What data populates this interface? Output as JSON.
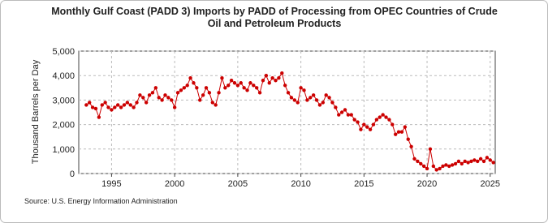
{
  "chart_data": {
    "type": "line",
    "title": "Monthly Gulf Coast (PADD 3) Imports by PADD of Processing from OPEC Countries of Crude Oil and Petroleum Products",
    "y_label": "Thousand Barrels per Day",
    "source": "Source: U.S. Energy Information Administration",
    "xlim": [
      1992.4,
      2025.4
    ],
    "xticks": [
      1995,
      2000,
      2005,
      2010,
      2015,
      2020,
      2025
    ],
    "ylim": [
      0,
      5000
    ],
    "yticks": [
      0,
      {
        "value": 1000,
        "label": "1,000"
      },
      {
        "value": 2000,
        "label": "2,000"
      },
      {
        "value": 3000,
        "label": "3,000"
      },
      {
        "value": 4000,
        "label": "4,000"
      },
      {
        "value": 5000,
        "label": "5,000"
      }
    ],
    "grid": true,
    "series": [
      {
        "color": "#cc0000",
        "x": [
          1993,
          1993.25,
          1993.5,
          1993.75,
          1994,
          1994.25,
          1994.5,
          1994.75,
          1995,
          1995.25,
          1995.5,
          1995.75,
          1996,
          1996.25,
          1996.5,
          1996.75,
          1997,
          1997.25,
          1997.5,
          1997.75,
          1998,
          1998.25,
          1998.5,
          1998.75,
          1999,
          1999.25,
          1999.5,
          1999.75,
          2000,
          2000.25,
          2000.5,
          2000.75,
          2001,
          2001.25,
          2001.5,
          2001.75,
          2002,
          2002.25,
          2002.5,
          2002.75,
          2003,
          2003.25,
          2003.5,
          2003.75,
          2004,
          2004.25,
          2004.5,
          2004.75,
          2005,
          2005.25,
          2005.5,
          2005.75,
          2006,
          2006.25,
          2006.5,
          2006.75,
          2007,
          2007.25,
          2007.5,
          2007.75,
          2008,
          2008.25,
          2008.5,
          2008.75,
          2009,
          2009.25,
          2009.5,
          2009.75,
          2010,
          2010.25,
          2010.5,
          2010.75,
          2011,
          2011.25,
          2011.5,
          2011.75,
          2012,
          2012.25,
          2012.5,
          2012.75,
          2013,
          2013.25,
          2013.5,
          2013.75,
          2014,
          2014.25,
          2014.5,
          2014.75,
          2015,
          2015.25,
          2015.5,
          2015.75,
          2016,
          2016.25,
          2016.5,
          2016.75,
          2017,
          2017.25,
          2017.5,
          2017.75,
          2018,
          2018.25,
          2018.5,
          2018.75,
          2019,
          2019.25,
          2019.5,
          2019.75,
          2020,
          2020.25,
          2020.5,
          2020.75,
          2021,
          2021.25,
          2021.5,
          2021.75,
          2022,
          2022.25,
          2022.5,
          2022.75,
          2023,
          2023.25,
          2023.5,
          2023.75,
          2024,
          2024.25,
          2024.5,
          2024.75,
          2025,
          2025.25
        ],
        "values": [
          2800,
          2900,
          2700,
          2650,
          2300,
          2800,
          2900,
          2700,
          2600,
          2700,
          2800,
          2700,
          2800,
          2900,
          2800,
          2700,
          2900,
          3200,
          3100,
          2900,
          3200,
          3300,
          3500,
          3100,
          3000,
          3200,
          3100,
          3000,
          2700,
          3300,
          3400,
          3500,
          3600,
          3900,
          3700,
          3500,
          3000,
          3200,
          3500,
          3300,
          2900,
          2800,
          3300,
          3900,
          3500,
          3600,
          3800,
          3700,
          3600,
          3700,
          3500,
          3400,
          3700,
          3600,
          3500,
          3300,
          3800,
          4000,
          3700,
          3900,
          3800,
          3900,
          4100,
          3600,
          3300,
          3100,
          3000,
          2900,
          3500,
          3400,
          3000,
          3100,
          3200,
          3000,
          2800,
          2900,
          3200,
          3100,
          2900,
          2700,
          2400,
          2500,
          2600,
          2400,
          2400,
          2200,
          2100,
          1800,
          2000,
          1900,
          1800,
          2000,
          2200,
          2300,
          2400,
          2300,
          2200,
          2000,
          1600,
          1700,
          1700,
          1900,
          1400,
          1100,
          600,
          500,
          400,
          300,
          200,
          1000,
          300,
          150,
          200,
          300,
          350,
          300,
          350,
          400,
          500,
          400,
          500,
          450,
          500,
          550,
          500,
          600,
          500,
          650,
          550,
          450
        ]
      }
    ]
  }
}
